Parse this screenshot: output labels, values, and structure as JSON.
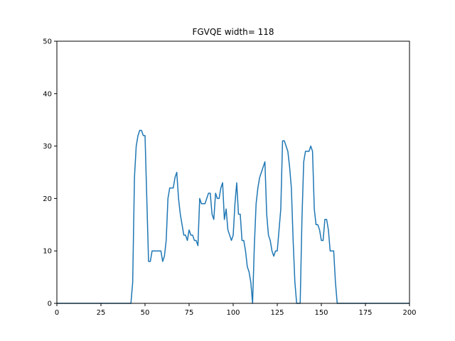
{
  "chart_data": {
    "type": "line",
    "title": "FGVQE width= 118",
    "xlabel": "",
    "ylabel": "",
    "xlim": [
      0,
      200
    ],
    "ylim": [
      0,
      50
    ],
    "xticks": [
      0,
      25,
      50,
      75,
      100,
      125,
      150,
      175,
      200
    ],
    "yticks": [
      0,
      10,
      20,
      30,
      40,
      50
    ],
    "grid": false,
    "series": [
      {
        "color": "#1f77b4",
        "x": [
          0,
          10,
          20,
          30,
          40,
          41,
          42,
          43,
          44,
          45,
          46,
          47,
          48,
          49,
          50,
          51,
          52,
          53,
          54,
          55,
          56,
          57,
          58,
          59,
          60,
          61,
          62,
          63,
          64,
          65,
          66,
          67,
          68,
          69,
          70,
          71,
          72,
          73,
          74,
          75,
          76,
          77,
          78,
          79,
          80,
          81,
          82,
          83,
          84,
          85,
          86,
          87,
          88,
          89,
          90,
          91,
          92,
          93,
          94,
          95,
          96,
          97,
          98,
          99,
          100,
          101,
          102,
          103,
          104,
          105,
          106,
          107,
          108,
          109,
          110,
          111,
          112,
          113,
          114,
          115,
          116,
          117,
          118,
          119,
          120,
          121,
          122,
          123,
          124,
          125,
          126,
          127,
          128,
          129,
          130,
          131,
          132,
          133,
          134,
          135,
          136,
          137,
          138,
          139,
          140,
          141,
          142,
          143,
          144,
          145,
          146,
          147,
          148,
          149,
          150,
          151,
          152,
          153,
          154,
          155,
          156,
          157,
          158,
          159,
          160,
          161,
          170,
          180,
          190,
          200
        ],
        "y": [
          0,
          0,
          0,
          0,
          0,
          0,
          0,
          4,
          24,
          30,
          32,
          33,
          33,
          32,
          32,
          20,
          8,
          8,
          10,
          10,
          10,
          10,
          10,
          10,
          8,
          9,
          12,
          20,
          22,
          22,
          22,
          24,
          25,
          20,
          17,
          15,
          13,
          13,
          12,
          14,
          13,
          13,
          12,
          12,
          11,
          20,
          19,
          19,
          19,
          20,
          21,
          21,
          17,
          16,
          21,
          20,
          20,
          22,
          23,
          16,
          18,
          14,
          13,
          12,
          13,
          19,
          23,
          17,
          17,
          12,
          12,
          10,
          7,
          6,
          4,
          0,
          11,
          19,
          22,
          24,
          25,
          26,
          27,
          17,
          13,
          12,
          10,
          9,
          10,
          10,
          14,
          18,
          31,
          31,
          30,
          29,
          26,
          22,
          12,
          4,
          0,
          0,
          0,
          16,
          27,
          29,
          29,
          29,
          30,
          29,
          18,
          15,
          15,
          14,
          12,
          12,
          16,
          16,
          14,
          10,
          10,
          10,
          4,
          0,
          0,
          0,
          0,
          0,
          0,
          0
        ]
      }
    ]
  }
}
